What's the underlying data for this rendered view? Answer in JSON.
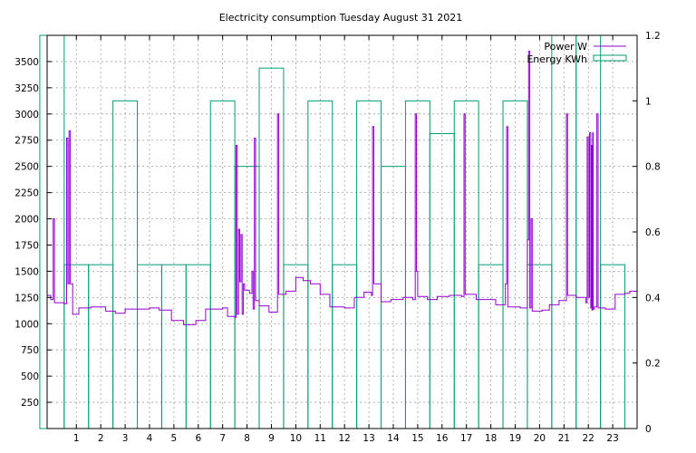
{
  "chart_data": {
    "type": "line",
    "title": "Electricity consumption Tuesday August 31 2021",
    "x_ticks": [
      1,
      2,
      3,
      4,
      5,
      6,
      7,
      8,
      9,
      10,
      11,
      12,
      13,
      14,
      15,
      16,
      17,
      18,
      19,
      20,
      21,
      22,
      23
    ],
    "xlim": [
      -0.2,
      24.0
    ],
    "y_left_ticks": [
      250,
      500,
      750,
      1000,
      1250,
      1500,
      1750,
      2000,
      2250,
      2500,
      2750,
      3000,
      3250,
      3500
    ],
    "ylim_left": [
      0,
      3750
    ],
    "y_right_ticks": [
      "0",
      "0.2",
      "0.4",
      "0.6",
      "0.8",
      "1",
      "1.2"
    ],
    "ylim_right": [
      0,
      1.2
    ],
    "grid": true,
    "legend_position": "top-right",
    "series": [
      {
        "name": "Power W",
        "axis": "left",
        "color": "#9400d3",
        "step": true,
        "points": [
          [
            -0.2,
            1270
          ],
          [
            -0.05,
            1230
          ],
          [
            0.05,
            2000
          ],
          [
            0.1,
            1200
          ],
          [
            0.5,
            1190
          ],
          [
            0.6,
            2770
          ],
          [
            0.65,
            1380
          ],
          [
            0.7,
            2840
          ],
          [
            0.75,
            1380
          ],
          [
            0.85,
            1090
          ],
          [
            1.1,
            1150
          ],
          [
            1.6,
            1160
          ],
          [
            2.2,
            1120
          ],
          [
            2.6,
            1100
          ],
          [
            3.0,
            1140
          ],
          [
            4.0,
            1150
          ],
          [
            4.4,
            1130
          ],
          [
            4.9,
            1030
          ],
          [
            5.4,
            990
          ],
          [
            5.9,
            1030
          ],
          [
            6.3,
            1140
          ],
          [
            7.0,
            1150
          ],
          [
            7.2,
            1070
          ],
          [
            7.5,
            1060
          ],
          [
            7.55,
            2700
          ],
          [
            7.6,
            1090
          ],
          [
            7.65,
            1900
          ],
          [
            7.7,
            1400
          ],
          [
            7.75,
            1850
          ],
          [
            7.8,
            1090
          ],
          [
            7.85,
            1380
          ],
          [
            7.9,
            1320
          ],
          [
            8.1,
            1290
          ],
          [
            8.2,
            1500
          ],
          [
            8.25,
            1140
          ],
          [
            8.3,
            2770
          ],
          [
            8.35,
            1220
          ],
          [
            8.5,
            1170
          ],
          [
            8.9,
            1110
          ],
          [
            9.25,
            3000
          ],
          [
            9.3,
            1280
          ],
          [
            9.6,
            1310
          ],
          [
            10.0,
            1440
          ],
          [
            10.3,
            1410
          ],
          [
            10.6,
            1380
          ],
          [
            11.0,
            1280
          ],
          [
            11.4,
            1160
          ],
          [
            12.0,
            1150
          ],
          [
            12.4,
            1250
          ],
          [
            12.8,
            1300
          ],
          [
            13.1,
            1270
          ],
          [
            13.15,
            2880
          ],
          [
            13.2,
            1380
          ],
          [
            13.5,
            1210
          ],
          [
            13.9,
            1230
          ],
          [
            14.4,
            1250
          ],
          [
            14.8,
            1230
          ],
          [
            14.9,
            3000
          ],
          [
            14.95,
            1500
          ],
          [
            15.0,
            1260
          ],
          [
            15.4,
            1230
          ],
          [
            15.8,
            1260
          ],
          [
            16.3,
            1270
          ],
          [
            16.8,
            1260
          ],
          [
            16.9,
            3000
          ],
          [
            16.95,
            1280
          ],
          [
            17.4,
            1230
          ],
          [
            18.2,
            1180
          ],
          [
            18.6,
            1380
          ],
          [
            18.65,
            2880
          ],
          [
            18.7,
            1160
          ],
          [
            19.2,
            1150
          ],
          [
            19.5,
            1800
          ],
          [
            19.55,
            3600
          ],
          [
            19.6,
            1150
          ],
          [
            19.65,
            2000
          ],
          [
            19.7,
            1120
          ],
          [
            20.1,
            1130
          ],
          [
            20.4,
            1180
          ],
          [
            20.8,
            1220
          ],
          [
            21.1,
            3000
          ],
          [
            21.15,
            1270
          ],
          [
            21.5,
            1250
          ],
          [
            21.9,
            1200
          ],
          [
            21.95,
            2780
          ],
          [
            22.0,
            1250
          ],
          [
            22.05,
            2820
          ],
          [
            22.1,
            1150
          ],
          [
            22.12,
            2700
          ],
          [
            22.15,
            1130
          ],
          [
            22.18,
            2820
          ],
          [
            22.2,
            1140
          ],
          [
            22.25,
            1160
          ],
          [
            22.35,
            3000
          ],
          [
            22.4,
            1150
          ],
          [
            22.7,
            1140
          ],
          [
            23.1,
            1280
          ],
          [
            23.5,
            1290
          ],
          [
            23.7,
            1310
          ],
          [
            24.0,
            1310
          ]
        ]
      },
      {
        "name": "Energy KWh",
        "axis": "right",
        "color": "#009e73",
        "bars": [
          {
            "hour": 0,
            "value": 1.2
          },
          {
            "hour": 1,
            "value": 0.5
          },
          {
            "hour": 2,
            "value": 0.5
          },
          {
            "hour": 3,
            "value": 1.0
          },
          {
            "hour": 4,
            "value": 0.5
          },
          {
            "hour": 5,
            "value": 0.5
          },
          {
            "hour": 6,
            "value": 0.5
          },
          {
            "hour": 7,
            "value": 1.0
          },
          {
            "hour": 8,
            "value": 0.8
          },
          {
            "hour": 9,
            "value": 1.1
          },
          {
            "hour": 10,
            "value": 0.5
          },
          {
            "hour": 11,
            "value": 1.0
          },
          {
            "hour": 12,
            "value": 0.5
          },
          {
            "hour": 13,
            "value": 1.0
          },
          {
            "hour": 14,
            "value": 0.8
          },
          {
            "hour": 15,
            "value": 1.0
          },
          {
            "hour": 16,
            "value": 0.9
          },
          {
            "hour": 17,
            "value": 1.0
          },
          {
            "hour": 18,
            "value": 0.5
          },
          {
            "hour": 19,
            "value": 1.0
          },
          {
            "hour": 20,
            "value": 0.5
          },
          {
            "hour": 21,
            "value": 1.2
          },
          {
            "hour": 22,
            "value": 1.2
          },
          {
            "hour": 23,
            "value": 0.5
          }
        ]
      }
    ]
  }
}
